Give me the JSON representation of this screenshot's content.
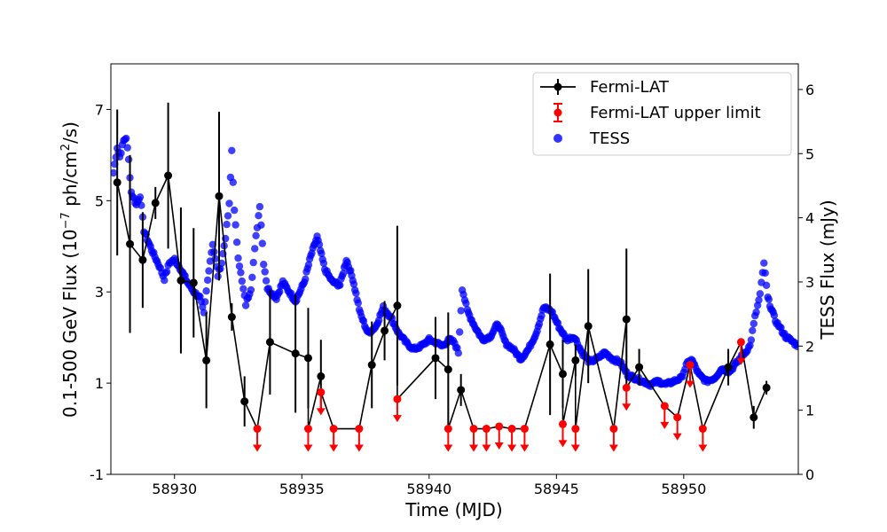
{
  "chart_data": {
    "type": "scatter",
    "xlabel": "Time (MJD)",
    "ylabel_left_prefix": "0.1-500 GeV Flux (10",
    "ylabel_left_exp": "−7",
    "ylabel_left_mid": " ph/cm",
    "ylabel_left_sq": "2",
    "ylabel_left_suffix": "/s)",
    "ylabel_right": "TESS Flux (mJy)",
    "xlim": [
      58927.5,
      58954.5
    ],
    "ylim_left": [
      -1,
      8
    ],
    "ylim_right": [
      0,
      6.4
    ],
    "x_ticks": [
      58930,
      58935,
      58940,
      58945,
      58950
    ],
    "x_tick_labels": [
      "58930",
      "58935",
      "58940",
      "58945",
      "58950"
    ],
    "y_left_ticks": [
      -1,
      1,
      3,
      5,
      7
    ],
    "y_left_tick_labels": [
      "-1",
      "1",
      "3",
      "5",
      "7"
    ],
    "y_right_ticks": [
      0,
      1,
      2,
      3,
      4,
      5,
      6
    ],
    "y_right_tick_labels": [
      "0",
      "1",
      "2",
      "3",
      "4",
      "5",
      "6"
    ],
    "legend": [
      {
        "label": "Fermi-LAT",
        "color": "#000000",
        "style": "errorbar-line"
      },
      {
        "label": "Fermi-LAT upper limit",
        "color": "#ff0000",
        "style": "errorbar"
      },
      {
        "label": "TESS",
        "color": "#0000ff",
        "style": "marker"
      }
    ],
    "colors": {
      "fermi": "#000000",
      "upper": "#ff0000",
      "tess": "#0000ff"
    },
    "fermi": [
      {
        "x": 58927.75,
        "y": 5.4,
        "err": 1.6
      },
      {
        "x": 58928.25,
        "y": 4.05,
        "err": 1.95
      },
      {
        "x": 58928.75,
        "y": 3.7,
        "err": 1.05
      },
      {
        "x": 58929.25,
        "y": 4.95,
        "err": 0.35
      },
      {
        "x": 58929.75,
        "y": 5.55,
        "err": 1.6
      },
      {
        "x": 58930.25,
        "y": 3.25,
        "err": 1.6
      },
      {
        "x": 58930.75,
        "y": 3.2,
        "err": 1.2
      },
      {
        "x": 58931.25,
        "y": 1.5,
        "err": 1.05
      },
      {
        "x": 58931.75,
        "y": 5.1,
        "err": 1.85
      },
      {
        "x": 58932.25,
        "y": 2.45,
        "err": 0.3
      },
      {
        "x": 58932.75,
        "y": 0.6,
        "err": 0.55
      },
      {
        "x": 58933.75,
        "y": 1.9,
        "err": 1.15
      },
      {
        "x": 58934.75,
        "y": 1.65,
        "err": 1.3
      },
      {
        "x": 58935.25,
        "y": 1.55,
        "err": 1.1
      },
      {
        "x": 58935.75,
        "y": 1.15,
        "err": 0.8
      },
      {
        "x": 58937.75,
        "y": 1.4,
        "err": 0.95
      },
      {
        "x": 58938.25,
        "y": 2.15,
        "err": 0.65
      },
      {
        "x": 58938.75,
        "y": 2.7,
        "err": 1.75
      },
      {
        "x": 58940.25,
        "y": 1.55,
        "err": 0.9
      },
      {
        "x": 58940.75,
        "y": 1.3,
        "err": 1.25
      },
      {
        "x": 58941.25,
        "y": 0.85,
        "err": 0.35
      },
      {
        "x": 58944.75,
        "y": 1.85,
        "err": 1.55
      },
      {
        "x": 58945.25,
        "y": 1.2,
        "err": 0.75
      },
      {
        "x": 58945.75,
        "y": 1.5,
        "err": 0.35
      },
      {
        "x": 58946.25,
        "y": 2.25,
        "err": 1.25
      },
      {
        "x": 58947.75,
        "y": 2.4,
        "err": 1.55
      },
      {
        "x": 58948.25,
        "y": 1.35,
        "err": 0.4
      },
      {
        "x": 58951.75,
        "y": 1.35,
        "err": 0.4
      },
      {
        "x": 58952.75,
        "y": 0.25,
        "err": 0.25
      },
      {
        "x": 58953.25,
        "y": 0.9,
        "err": 0.15
      }
    ],
    "upper_limits": [
      {
        "x": 58933.25,
        "y": 0
      },
      {
        "x": 58935.25,
        "y": 0
      },
      {
        "x": 58935.75,
        "y": 0.8
      },
      {
        "x": 58936.25,
        "y": 0
      },
      {
        "x": 58937.25,
        "y": 0
      },
      {
        "x": 58938.75,
        "y": 0.65
      },
      {
        "x": 58940.75,
        "y": 0
      },
      {
        "x": 58941.75,
        "y": 0
      },
      {
        "x": 58942.25,
        "y": 0
      },
      {
        "x": 58942.75,
        "y": 0.05
      },
      {
        "x": 58943.25,
        "y": 0
      },
      {
        "x": 58943.75,
        "y": 0
      },
      {
        "x": 58945.25,
        "y": 0.1
      },
      {
        "x": 58945.75,
        "y": 0
      },
      {
        "x": 58947.25,
        "y": 0
      },
      {
        "x": 58947.75,
        "y": 0.9
      },
      {
        "x": 58949.25,
        "y": 0.5
      },
      {
        "x": 58949.75,
        "y": 0.25
      },
      {
        "x": 58950.25,
        "y": 1.4
      },
      {
        "x": 58950.75,
        "y": 0
      },
      {
        "x": 58952.25,
        "y": 1.9
      }
    ],
    "fermi_line_order_note": "line connects all Fermi points and upper limits in time order",
    "tess_knots": [
      [
        58927.6,
        4.7
      ],
      [
        58927.75,
        5.1
      ],
      [
        58927.85,
        4.95
      ],
      [
        58928.0,
        5.2
      ],
      [
        58928.1,
        5.25
      ],
      [
        58928.2,
        4.9
      ],
      [
        58928.3,
        4.4
      ],
      [
        58928.5,
        4.2
      ],
      [
        58928.65,
        4.35
      ],
      [
        58928.8,
        3.8
      ],
      [
        58929.1,
        3.5
      ],
      [
        58929.4,
        3.25
      ],
      [
        58929.6,
        3.05
      ],
      [
        58929.8,
        3.3
      ],
      [
        58930.0,
        3.35
      ],
      [
        58930.25,
        3.2
      ],
      [
        58930.5,
        3.0
      ],
      [
        58930.75,
        2.85
      ],
      [
        58931.0,
        2.75
      ],
      [
        58931.15,
        2.5
      ],
      [
        58931.35,
        3.2
      ],
      [
        58931.5,
        3.6
      ],
      [
        58931.7,
        3.1
      ],
      [
        58931.85,
        3.3
      ],
      [
        58932.0,
        3.7
      ],
      [
        58932.15,
        4.2
      ],
      [
        58932.25,
        5.05
      ],
      [
        58932.35,
        4.1
      ],
      [
        58932.5,
        3.4
      ],
      [
        58932.65,
        3.0
      ],
      [
        58932.8,
        2.65
      ],
      [
        58933.0,
        2.9
      ],
      [
        58933.2,
        3.7
      ],
      [
        58933.35,
        4.2
      ],
      [
        58933.5,
        3.3
      ],
      [
        58933.65,
        2.9
      ],
      [
        58934.0,
        2.75
      ],
      [
        58934.25,
        3.0
      ],
      [
        58934.5,
        2.85
      ],
      [
        58934.75,
        2.7
      ],
      [
        58935.1,
        3.0
      ],
      [
        58935.35,
        3.4
      ],
      [
        58935.6,
        3.7
      ],
      [
        58935.9,
        3.2
      ],
      [
        58936.2,
        3.0
      ],
      [
        58936.5,
        2.95
      ],
      [
        58936.75,
        3.35
      ],
      [
        58937.0,
        3.05
      ],
      [
        58937.3,
        2.5
      ],
      [
        58937.6,
        2.2
      ],
      [
        58937.9,
        2.3
      ],
      [
        58938.2,
        2.6
      ],
      [
        58938.5,
        2.45
      ],
      [
        58938.8,
        2.2
      ],
      [
        58939.1,
        2.05
      ],
      [
        58939.4,
        1.95
      ],
      [
        58939.7,
        2.0
      ],
      [
        58940.0,
        2.1
      ],
      [
        58940.3,
        2.05
      ],
      [
        58940.5,
        2.0
      ],
      [
        58940.8,
        2.1
      ],
      [
        58941.0,
        2.05
      ],
      [
        58941.15,
        1.9
      ],
      [
        58941.3,
        2.9
      ],
      [
        58941.5,
        2.55
      ],
      [
        58941.8,
        2.3
      ],
      [
        58942.1,
        2.1
      ],
      [
        58942.4,
        2.15
      ],
      [
        58942.7,
        2.35
      ],
      [
        58943.0,
        2.05
      ],
      [
        58943.3,
        1.95
      ],
      [
        58943.6,
        1.8
      ],
      [
        58943.9,
        1.95
      ],
      [
        58944.2,
        2.2
      ],
      [
        58944.5,
        2.6
      ],
      [
        58944.8,
        2.55
      ],
      [
        58945.1,
        2.3
      ],
      [
        58945.4,
        2.1
      ],
      [
        58945.7,
        2.15
      ],
      [
        58946.0,
        1.9
      ],
      [
        58946.3,
        1.75
      ],
      [
        58946.6,
        1.8
      ],
      [
        58946.9,
        1.9
      ],
      [
        58947.2,
        1.8
      ],
      [
        58947.5,
        1.75
      ],
      [
        58947.8,
        1.55
      ],
      [
        58948.1,
        1.5
      ],
      [
        58948.4,
        1.45
      ],
      [
        58948.7,
        1.4
      ],
      [
        58949.0,
        1.45
      ],
      [
        58949.3,
        1.4
      ],
      [
        58949.6,
        1.45
      ],
      [
        58949.9,
        1.5
      ],
      [
        58950.1,
        1.7
      ],
      [
        58950.3,
        1.8
      ],
      [
        58950.6,
        1.55
      ],
      [
        58950.9,
        1.45
      ],
      [
        58951.2,
        1.5
      ],
      [
        58951.5,
        1.65
      ],
      [
        58951.8,
        1.6
      ],
      [
        58952.1,
        1.75
      ],
      [
        58952.4,
        1.9
      ],
      [
        58952.6,
        2.0
      ],
      [
        58952.8,
        2.45
      ],
      [
        58953.0,
        2.8
      ],
      [
        58953.15,
        3.3
      ],
      [
        58953.3,
        2.75
      ],
      [
        58953.6,
        2.4
      ],
      [
        58954.0,
        2.15
      ],
      [
        58954.5,
        2.0
      ]
    ]
  }
}
